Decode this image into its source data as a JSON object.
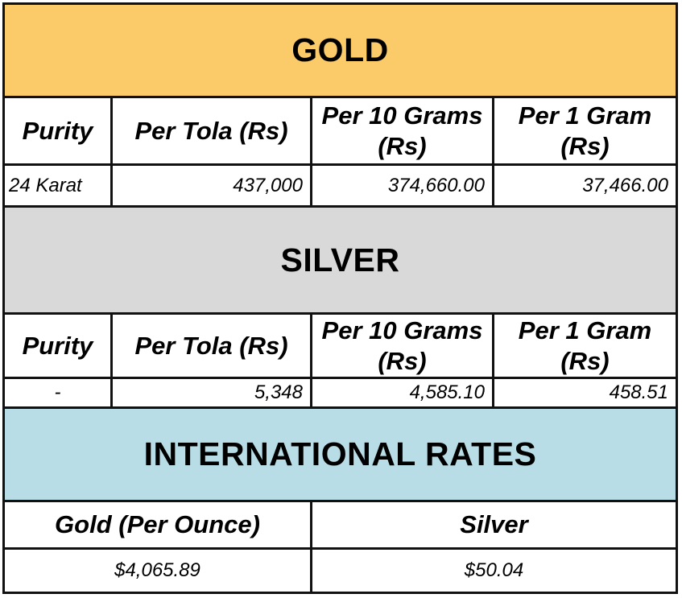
{
  "colors": {
    "gold_banner": "#fccb69",
    "silver_banner": "#d9d9d9",
    "intl_banner": "#b8dde6",
    "border": "#111111"
  },
  "gold": {
    "title": "GOLD",
    "headers": [
      "Purity",
      "Per Tola (Rs)",
      "Per 10 Grams (Rs)",
      "Per 1 Gram (Rs)"
    ],
    "row": {
      "purity": "24 Karat",
      "per_tola": "437,000",
      "per_10_grams": "374,660.00",
      "per_1_gram": "37,466.00"
    }
  },
  "silver": {
    "title": "SILVER",
    "headers": [
      "Purity",
      "Per Tola (Rs)",
      "Per 10 Grams (Rs)",
      "Per 1 Gram (Rs)"
    ],
    "row": {
      "purity": "-",
      "per_tola": "5,348",
      "per_10_grams": "4,585.10",
      "per_1_gram": "458.51"
    }
  },
  "international": {
    "title": "INTERNATIONAL RATES",
    "headers": [
      "Gold (Per Ounce)",
      "Silver"
    ],
    "values": [
      "$4,065.89",
      "$50.04"
    ]
  }
}
